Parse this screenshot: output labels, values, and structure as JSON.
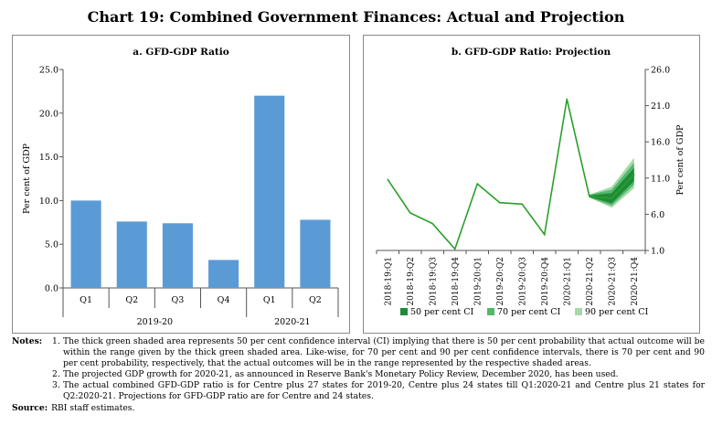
{
  "title": "Chart 19: Combined Government Finances: Actual and Projection",
  "colors": {
    "bar": "#5b9bd5",
    "line": "#2aa02a",
    "ci50": "#1f8a3a",
    "ci70": "#52b96a",
    "ci90": "#a8d8a8"
  },
  "chart_data": [
    {
      "type": "bar",
      "title": "a. GFD-GDP Ratio",
      "ylabel": "Per cent of GDP",
      "ylim": [
        0,
        25
      ],
      "yticks": [
        "0.0",
        "5.0",
        "10.0",
        "15.0",
        "20.0",
        "25.0"
      ],
      "categories": [
        "Q1",
        "Q2",
        "Q3",
        "Q4",
        "Q1",
        "Q2"
      ],
      "groups": [
        "2019-20",
        "2020-21"
      ],
      "values": [
        10.0,
        7.6,
        7.4,
        3.2,
        22.0,
        7.8
      ]
    },
    {
      "type": "line",
      "title": "b. GFD-GDP Ratio: Projection",
      "ylabel": "Per cent of GDP",
      "ylim": [
        1.0,
        26.0
      ],
      "yticks": [
        "1.0",
        "6.0",
        "11.0",
        "16.0",
        "21.0",
        "26.0"
      ],
      "x": [
        "2018-19:Q1",
        "2018-19:Q2",
        "2018-19:Q3",
        "2018-19:Q4",
        "2019-20:Q1",
        "2019-20:Q2",
        "2019-20:Q3",
        "2019-20:Q4",
        "2020-21:Q1",
        "2020-21:Q2",
        "2020-21:Q3",
        "2020-21:Q4"
      ],
      "values": [
        10.8,
        6.2,
        4.7,
        1.2,
        10.2,
        7.6,
        7.4,
        3.2,
        21.9,
        8.5,
        8.2,
        11.5
      ],
      "ci": {
        "x": [
          "2020-21:Q2",
          "2020-21:Q3",
          "2020-21:Q4"
        ],
        "ci90": {
          "lower": [
            8.3,
            6.9,
            9.6
          ],
          "upper": [
            8.7,
            9.8,
            13.8
          ]
        },
        "ci70": {
          "lower": [
            8.3,
            7.2,
            10.1
          ],
          "upper": [
            8.7,
            9.4,
            13.1
          ]
        },
        "ci50": {
          "lower": [
            8.4,
            7.5,
            10.6
          ],
          "upper": [
            8.6,
            8.9,
            12.4
          ]
        }
      },
      "legend": [
        "50 per cent CI",
        "70 per cent CI",
        "90 per cent CI"
      ]
    }
  ],
  "notes": {
    "label": "Notes:",
    "items": [
      {
        "num": "1.",
        "text": "The thick green shaded area represents 50 per cent confidence interval (CI) implying that there is 50 per cent probability that actual outcome will be within the range given by the thick green shaded area. Like-wise, for 70 per cent and 90 per cent confidence intervals, there is 70 per cent and 90 per cent probability, respectively, that the actual outcomes will be in the range represented by the respective shaded areas."
      },
      {
        "num": "2.",
        "text": "The projected GDP growth for 2020-21, as announced in Reserve Bank's Monetary Policy Review, December 2020, has been used."
      },
      {
        "num": "3.",
        "text": "The actual combined GFD-GDP ratio is for Centre plus 27 states for 2019-20, Centre plus 24 states till Q1:2020-21 and Centre plus 21 states for Q2:2020-21. Projections for GFD-GDP ratio are for Centre and 24 states."
      }
    ]
  },
  "source": {
    "label": "Source:",
    "text": "RBI staff estimates."
  }
}
